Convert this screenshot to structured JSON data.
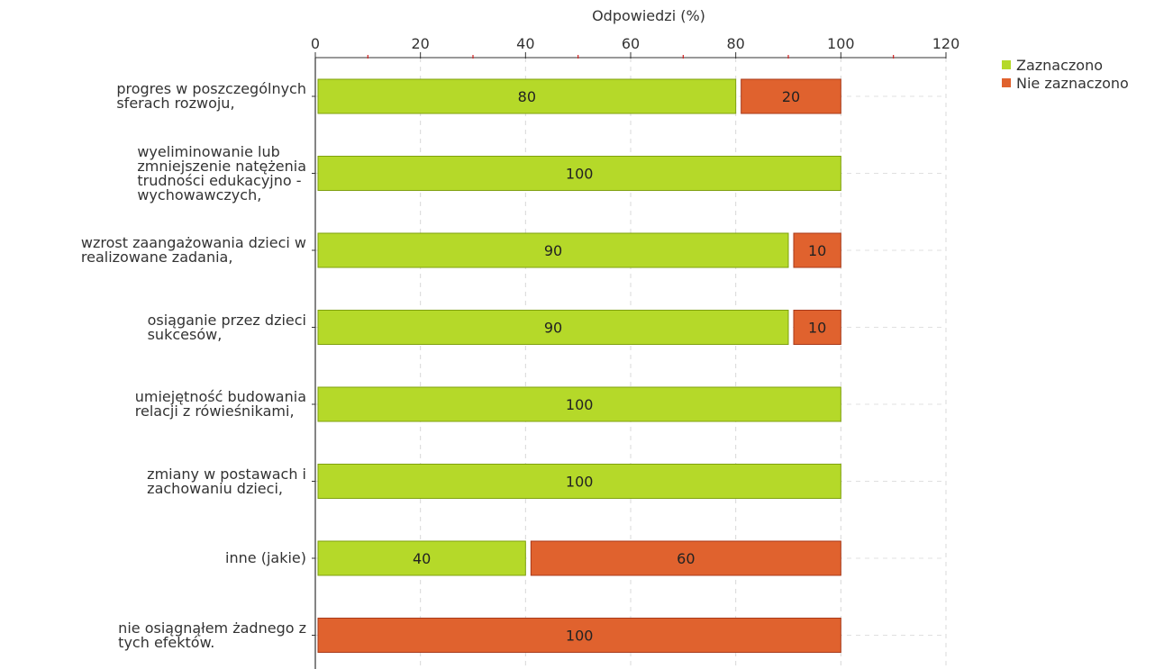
{
  "chart_data": {
    "type": "bar",
    "orientation": "horizontal",
    "stacked": true,
    "xlabel": "Odpowiedzi (%)",
    "xlim": [
      0,
      120
    ],
    "xticks": [
      0,
      20,
      40,
      60,
      80,
      100,
      120
    ],
    "grid": true,
    "legend_position": "top-right",
    "categories": [
      [
        "progres w poszczególnych",
        "sferach rozwoju,"
      ],
      [
        "wyeliminowanie lub",
        "zmniejszenie natężenia",
        "trudności edukacyjno -",
        "wychowawczych,"
      ],
      [
        "wzrost zaangażowania dzieci w",
        "realizowane zadania,"
      ],
      [
        "osiąganie przez dzieci",
        "sukcesów,"
      ],
      [
        "umiejętność budowania",
        "relacji z rówieśnikami,"
      ],
      [
        "zmiany w postawach i",
        "zachowaniu dzieci,"
      ],
      [
        "inne (jakie)"
      ],
      [
        "nie osiągnąłem żadnego z",
        "tych efektów."
      ]
    ],
    "series": [
      {
        "name": "Zaznaczono",
        "color": "#b5d929",
        "stroke": "#7fa10e",
        "values": [
          80,
          100,
          90,
          90,
          100,
          100,
          40,
          0
        ]
      },
      {
        "name": "Nie zaznaczono",
        "color": "#e0622e",
        "stroke": "#a8391a",
        "values": [
          20,
          0,
          10,
          10,
          0,
          0,
          60,
          100
        ]
      }
    ]
  }
}
